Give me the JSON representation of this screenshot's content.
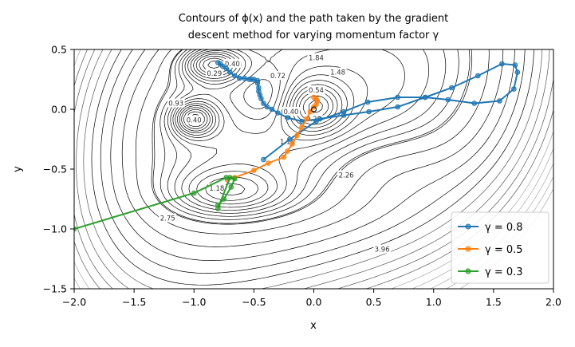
{
  "chart_data": {
    "type": "line",
    "title_lines": [
      "Contours of ϕ(x) and the path taken by the gradient",
      "descent method for varying momentum factor γ"
    ],
    "xlabel": "x",
    "ylabel": "y",
    "xlim": [
      -2.0,
      2.0
    ],
    "ylim": [
      -1.5,
      0.5
    ],
    "xticks": [
      "−2.0",
      "−1.5",
      "−1.0",
      "−0.5",
      "0.0",
      "0.5",
      "1.0",
      "1.5",
      "2.0"
    ],
    "xtick_values": [
      -2.0,
      -1.5,
      -1.0,
      -0.5,
      0.0,
      0.5,
      1.0,
      1.5,
      2.0
    ],
    "yticks": [
      "−1.5",
      "−1.0",
      "−0.5",
      "0.0",
      "0.5"
    ],
    "ytick_values": [
      -1.5,
      -1.0,
      -0.5,
      0.0,
      0.5
    ],
    "grid": false,
    "legend_position": "lower-right",
    "contour_labels": [
      {
        "text": "1.84",
        "x": 0.02,
        "y": 0.43
      },
      {
        "text": "1.48",
        "x": 0.2,
        "y": 0.31
      },
      {
        "text": "0.72",
        "x": -0.3,
        "y": 0.28
      },
      {
        "text": "0.54",
        "x": 0.02,
        "y": 0.16
      },
      {
        "text": "0.40",
        "x": -0.68,
        "y": 0.38
      },
      {
        "text": "0.29",
        "x": -0.83,
        "y": 0.3
      },
      {
        "text": "0.93",
        "x": -1.15,
        "y": 0.05
      },
      {
        "text": "0.40",
        "x": -1.0,
        "y": -0.09
      },
      {
        "text": "0.40",
        "x": -0.19,
        "y": -0.02
      },
      {
        "text": "0.20",
        "x": 0.0,
        "y": -0.08
      },
      {
        "text": "1.18",
        "x": -0.22,
        "y": -0.27
      },
      {
        "text": "2.26",
        "x": 0.27,
        "y": -0.55
      },
      {
        "text": "1.18",
        "x": -0.81,
        "y": -0.66
      },
      {
        "text": "2.75",
        "x": -1.22,
        "y": -0.91
      },
      {
        "text": "3.96",
        "x": 0.57,
        "y": -1.17
      }
    ],
    "series": [
      {
        "name": "γ = 0.8",
        "color": "#1f77b4",
        "x": [
          -0.8,
          -0.78,
          -0.76,
          -0.73,
          -0.7,
          -0.66,
          -0.62,
          -0.58,
          -0.54,
          -0.52,
          -0.5,
          -0.47,
          -0.47,
          -0.46,
          -0.46,
          -0.45,
          -0.44,
          -0.42,
          -0.39,
          -0.35,
          -0.3,
          -0.22,
          -0.1,
          0.05,
          0.25,
          0.46,
          0.7,
          0.93,
          1.15,
          1.37,
          1.57,
          1.68,
          1.7,
          1.67,
          1.55,
          1.34,
          1.12,
          0.93,
          0.7,
          0.45,
          0.25,
          0.02,
          -0.2,
          -0.42
        ],
        "y": [
          0.39,
          0.38,
          0.36,
          0.34,
          0.31,
          0.28,
          0.26,
          0.26,
          0.25,
          0.25,
          0.25,
          0.24,
          0.22,
          0.18,
          0.15,
          0.12,
          0.09,
          0.05,
          0.02,
          0.0,
          -0.03,
          -0.07,
          -0.1,
          -0.08,
          -0.05,
          -0.02,
          0.02,
          0.1,
          0.18,
          0.28,
          0.38,
          0.37,
          0.31,
          0.17,
          0.07,
          0.05,
          0.08,
          0.1,
          0.1,
          0.06,
          -0.02,
          -0.1,
          -0.25,
          -0.42
        ]
      },
      {
        "name": "γ = 0.5",
        "color": "#ff7f0e",
        "x": [
          0.0,
          0.02,
          0.03,
          0.02,
          0.0,
          -0.03,
          -0.06,
          -0.1,
          -0.14,
          -0.18,
          -0.22,
          -0.25,
          -0.38,
          -0.5,
          -0.66,
          -0.72
        ],
        "y": [
          0.1,
          0.09,
          0.07,
          0.04,
          0.02,
          -0.02,
          -0.08,
          -0.15,
          -0.22,
          -0.29,
          -0.35,
          -0.4,
          -0.45,
          -0.51,
          -0.57,
          -0.59
        ]
      },
      {
        "name": "γ = 0.3",
        "color": "#2ca02c",
        "x": [
          -2.0,
          -1.0,
          -0.73,
          -0.66,
          -0.69,
          -0.75,
          -0.8,
          -0.8,
          -0.7
        ],
        "y": [
          -1.0,
          -0.7,
          -0.57,
          -0.58,
          -0.65,
          -0.75,
          -0.8,
          -0.83,
          -0.57
        ]
      }
    ]
  }
}
